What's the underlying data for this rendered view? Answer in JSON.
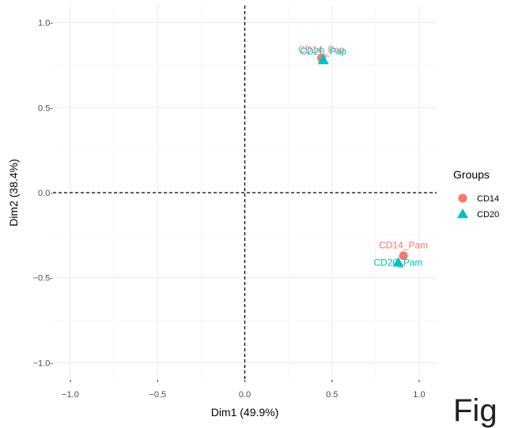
{
  "chart_data": {
    "type": "scatter",
    "xlabel": "Dim1 (49.9%)",
    "ylabel": "Dim2 (38.4%)",
    "xlim": [
      -1.1,
      1.1
    ],
    "ylim": [
      -1.1,
      1.1
    ],
    "xticks": [
      -1.0,
      -0.5,
      0.0,
      0.5,
      1.0
    ],
    "yticks": [
      -1.0,
      -0.5,
      0.0,
      0.5,
      1.0
    ],
    "xtick_labels": [
      "−1.0",
      "−0.5",
      "0.0",
      "0.5",
      "1.0"
    ],
    "ytick_labels": [
      "−1.0‐",
      "−0.5‐",
      "0.0‐",
      "0.5‐",
      "1.0‐"
    ],
    "grid": true,
    "legend": {
      "title": "Groups",
      "placement": "right"
    },
    "series": [
      {
        "name": "CD14",
        "color": "#F8766D",
        "marker": "circle",
        "points": [
          {
            "label": "CD14_Pap",
            "x": 0.44,
            "y": 0.79
          },
          {
            "label": "CD14_Pam",
            "x": 0.91,
            "y": -0.37
          }
        ]
      },
      {
        "name": "CD20",
        "color": "#00BFC4",
        "marker": "triangle",
        "points": [
          {
            "label": "CD20_Pap",
            "x": 0.45,
            "y": 0.78
          },
          {
            "label": "CD20_Pam",
            "x": 0.88,
            "y": -0.41
          }
        ]
      }
    ]
  },
  "overlay_text": "Fig"
}
